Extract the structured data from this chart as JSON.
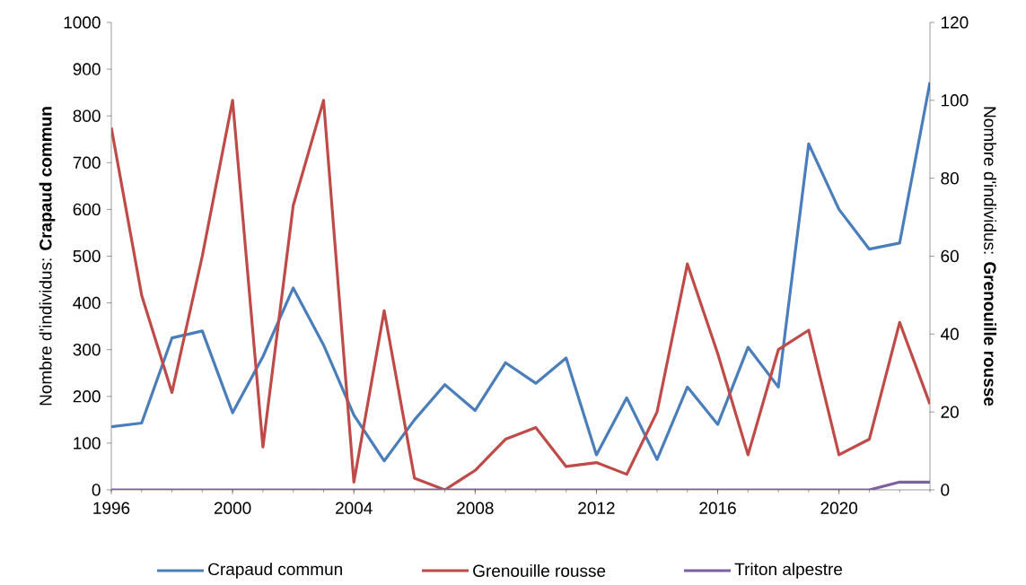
{
  "chart_data": {
    "type": "line",
    "x": [
      1996,
      1997,
      1998,
      1999,
      2000,
      2001,
      2002,
      2003,
      2004,
      2005,
      2006,
      2007,
      2008,
      2009,
      2010,
      2011,
      2012,
      2013,
      2014,
      2015,
      2016,
      2017,
      2018,
      2019,
      2020,
      2021,
      2022,
      2023
    ],
    "series": [
      {
        "name": "Crapaud commun",
        "color": "#4a7ebb",
        "values": [
          135,
          143,
          325,
          340,
          165,
          285,
          432,
          310,
          160,
          62,
          150,
          225,
          170,
          272,
          228,
          282,
          75,
          197,
          65,
          220,
          140,
          305,
          220,
          740,
          600,
          515,
          528,
          872
        ]
      },
      {
        "name": "Grenouille rousse",
        "color": "#be4b48",
        "axis": "y2",
        "values": [
          93,
          50,
          25,
          60,
          100,
          11,
          73,
          100,
          2,
          46,
          3,
          0,
          5,
          13,
          16,
          6,
          7,
          4,
          20,
          58,
          35,
          9,
          36,
          41,
          9,
          13,
          43,
          22
        ]
      },
      {
        "name": "Triton alpestre",
        "color": "#7d5fa0",
        "axis": "y2",
        "values": [
          0,
          0,
          0,
          0,
          0,
          0,
          0,
          0,
          0,
          0,
          0,
          0,
          0,
          0,
          0,
          0,
          0,
          0,
          0,
          0,
          0,
          0,
          0,
          0,
          0,
          0,
          2,
          2
        ]
      }
    ],
    "ylabel": "Nombre d'individus: **Crapaud commun**",
    "y2label": "Nombre d'individus: **Grenouille rousse**",
    "xlim": [
      1996,
      2023
    ],
    "xticks": [
      1996,
      2000,
      2004,
      2008,
      2012,
      2016,
      2020
    ],
    "ylim": [
      0,
      1000
    ],
    "yticks": [
      0,
      100,
      200,
      300,
      400,
      500,
      600,
      700,
      800,
      900,
      1000
    ],
    "y2lim": [
      0,
      120
    ],
    "y2ticks": [
      0,
      20,
      40,
      60,
      80,
      100,
      120
    ],
    "legend": "bottom",
    "marker": "none",
    "line_style": "solid",
    "grid": false
  }
}
